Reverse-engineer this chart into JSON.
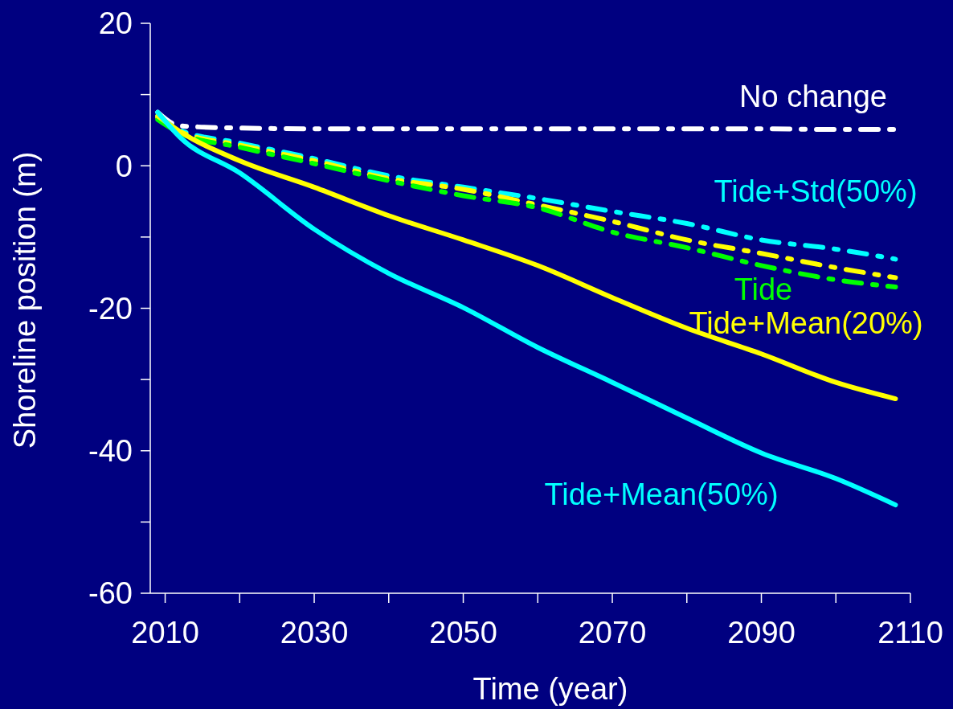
{
  "chart_data": {
    "type": "line",
    "xlabel": "Time (year)",
    "ylabel": "Shoreline position (m)",
    "x": [
      2009,
      2012,
      2020,
      2030,
      2040,
      2050,
      2060,
      2070,
      2080,
      2090,
      2100,
      2108
    ],
    "xlim": [
      2008,
      2110
    ],
    "xticks": [
      2010,
      {
        "value": 2020,
        "label": null
      },
      2030,
      {
        "value": 2040,
        "label": null
      },
      2050,
      {
        "value": 2060,
        "label": null
      },
      2070,
      {
        "value": 2080,
        "label": null
      },
      2090,
      {
        "value": 2100,
        "label": null
      },
      2110
    ],
    "ylim": [
      -60,
      20
    ],
    "yticks": [
      20,
      {
        "value": 10,
        "label": null
      },
      0,
      {
        "value": -10,
        "label": null
      },
      -20,
      {
        "value": -30,
        "label": null
      },
      -40,
      {
        "value": -50,
        "label": null
      },
      -60
    ],
    "grid": false,
    "series": [
      {
        "name": "No change",
        "color": "#ffffff",
        "line_style": "dashed",
        "values": [
          7.5,
          5.6,
          5.3,
          5.2,
          5.2,
          5.2,
          5.2,
          5.2,
          5.2,
          5.2,
          5.1,
          5.1
        ]
      },
      {
        "name": "Tide+Std(50%)",
        "color": "#00ffff",
        "line_style": "dashed",
        "values": [
          7,
          5,
          3.2,
          1,
          -1.4,
          -3,
          -4.6,
          -6.4,
          -8.1,
          -10.4,
          -11.7,
          -13.1
        ]
      },
      {
        "color": "#ffff00",
        "line_style": "dashed",
        "values": [
          6.8,
          4.8,
          2.9,
          0.7,
          -1.8,
          -3.3,
          -5.5,
          -7.8,
          -10.4,
          -12.3,
          -14.3,
          -15.7
        ]
      },
      {
        "name": "Tide",
        "color": "#00ff00",
        "line_style": "dashed",
        "values": [
          6.5,
          4.6,
          2.6,
          0.3,
          -2.1,
          -4.2,
          -5.9,
          -9.3,
          -11.5,
          -14,
          -16,
          -17
        ]
      },
      {
        "name": "Tide+Mean(20%)",
        "color": "#ffff00",
        "line_style": "solid",
        "values": [
          7,
          4.8,
          0.7,
          -3,
          -7,
          -10.4,
          -14,
          -18.5,
          -22.8,
          -26.4,
          -30.4,
          -32.7
        ]
      },
      {
        "name": "Tide+Mean(50%)",
        "color": "#00ffff",
        "line_style": "solid",
        "values": [
          7.5,
          4,
          -1,
          -8.9,
          -15.1,
          -19.9,
          -25.5,
          -30.4,
          -35.4,
          -40.3,
          -43.9,
          -47.6
        ]
      }
    ]
  }
}
